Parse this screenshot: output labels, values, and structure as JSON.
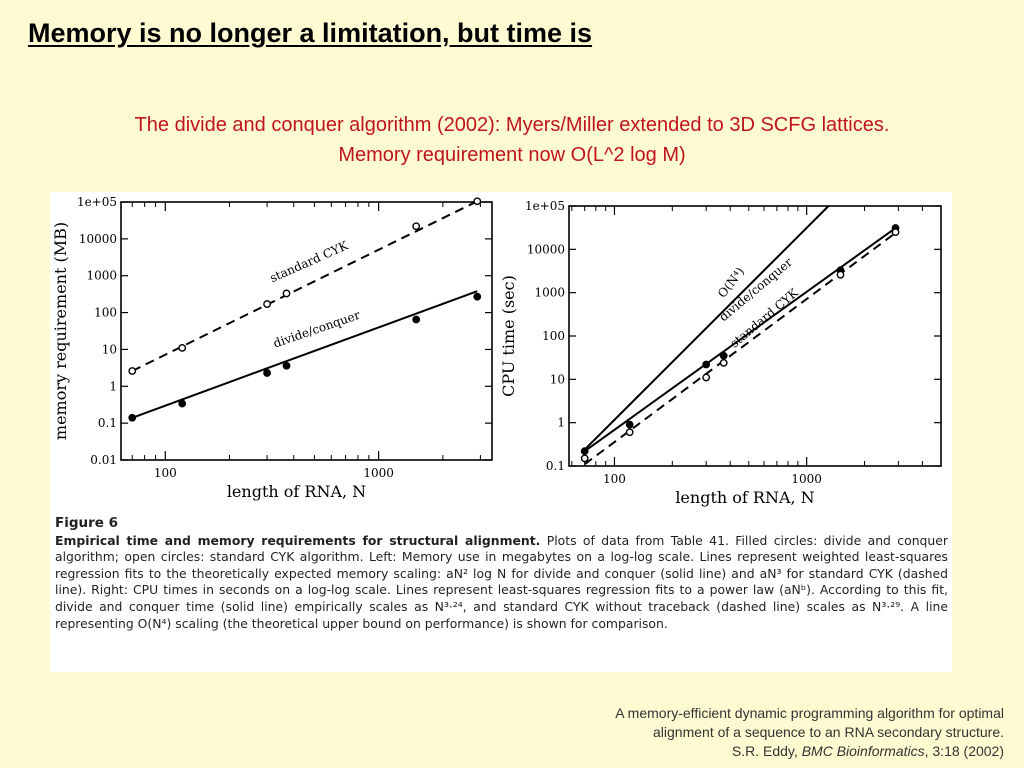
{
  "slide": {
    "title": "Memory is no longer a limitation, but time is",
    "subtitle_line1": "The divide and conquer algorithm (2002): Myers/Miller extended to 3D SCFG lattices.",
    "subtitle_line2": "Memory requirement now O(L^2 log M)"
  },
  "figure": {
    "number": "Figure 6",
    "caption_bold": "Empirical time and memory requirements for structural alignment.",
    "caption_rest": "Plots of data from Table 41. Filled circles: divide and conquer algorithm; open circles: standard CYK algorithm. Left: Memory use in megabytes on a log-log scale. Lines represent weighted least-squares regression fits to the theoretically expected memory scaling: aN² log N for divide and conquer (solid line) and aN³ for standard CYK (dashed line). Right: CPU times in seconds on a log-log scale. Lines represent least-squares regression fits to a power law (aNᵇ). According to this fit, divide and conquer time (solid line) empirically scales as N³·²⁴, and standard CYK without traceback (dashed line) scales as N³·²⁹. A line representing O(N⁴) scaling (the theoretical upper bound on performance) is shown for comparison."
  },
  "citation": {
    "line1": "A memory-efficient dynamic programming algorithm for optimal",
    "line2": "alignment of a sequence to an RNA secondary structure.",
    "authors": "S.R. Eddy, ",
    "journal": "BMC Bioinformatics",
    "volume": ", 3:18 (2002)"
  },
  "colors": {
    "background": "#fefbd3",
    "subtitle": "#c0141c",
    "figure_background": "#ffffff",
    "ink": "#000000"
  },
  "chart_data": [
    {
      "type": "scatter",
      "xlabel": "length of RNA, N",
      "ylabel": "memory requirement (MB)",
      "xscale": "log",
      "yscale": "log",
      "xlim": [
        62,
        3400
      ],
      "ylim": [
        0.01,
        100000
      ],
      "xticks": [
        {
          "v": 100,
          "label": "100"
        },
        {
          "v": 1000,
          "label": "1000"
        }
      ],
      "yticks": [
        {
          "v": 0.01,
          "label": "0.01"
        },
        {
          "v": 0.1,
          "label": "0.1"
        },
        {
          "v": 1,
          "label": "1"
        },
        {
          "v": 10,
          "label": "10"
        },
        {
          "v": 100,
          "label": "100"
        },
        {
          "v": 1000,
          "label": "1000"
        },
        {
          "v": 10000,
          "label": "10000"
        },
        {
          "v": 100000,
          "label": "1e+05"
        }
      ],
      "series": [
        {
          "name": "standard CYK",
          "marker": "open",
          "line": "dashed",
          "points": [
            [
              70,
              2.6
            ],
            [
              120,
              11
            ],
            [
              300,
              170
            ],
            [
              370,
              330
            ],
            [
              1500,
              22000
            ],
            [
              2900,
              105000
            ]
          ],
          "fit": [
            [
              70,
              2.6
            ],
            [
              2900,
              105000
            ]
          ],
          "label_at": [
            480,
            1900
          ],
          "label_angle": -24
        },
        {
          "name": "divide/conquer",
          "marker": "filled",
          "line": "solid",
          "points": [
            [
              70,
              0.14
            ],
            [
              120,
              0.34
            ],
            [
              300,
              2.3
            ],
            [
              370,
              3.6
            ],
            [
              1500,
              65
            ],
            [
              2900,
              270
            ]
          ],
          "fit": [
            [
              70,
              0.14
            ],
            [
              2900,
              380
            ]
          ],
          "label_at": [
            520,
            28
          ],
          "label_angle": -19
        }
      ]
    },
    {
      "type": "scatter",
      "xlabel": "length of RNA, N",
      "ylabel": "CPU time (sec)",
      "xscale": "log",
      "yscale": "log",
      "xlim": [
        58,
        5000
      ],
      "ylim": [
        0.1,
        100000
      ],
      "xticks": [
        {
          "v": 100,
          "label": "100"
        },
        {
          "v": 1000,
          "label": "1000"
        }
      ],
      "yticks": [
        {
          "v": 0.1,
          "label": "0.1"
        },
        {
          "v": 1,
          "label": "1"
        },
        {
          "v": 10,
          "label": "10"
        },
        {
          "v": 100,
          "label": "100"
        },
        {
          "v": 1000,
          "label": "1000"
        },
        {
          "v": 10000,
          "label": "10000"
        },
        {
          "v": 100000,
          "label": "1e+05"
        }
      ],
      "series": [
        {
          "name": "O(N⁴)",
          "marker": "none",
          "line": "solid",
          "points": [],
          "fit": [
            [
              70,
              0.24
            ],
            [
              1300,
              100000
            ]
          ],
          "label_at": [
            420,
            1500
          ],
          "label_angle": -52
        },
        {
          "name": "divide/conquer",
          "marker": "filled",
          "line": "solid",
          "points": [
            [
              70,
              0.22
            ],
            [
              120,
              0.9
            ],
            [
              300,
              22
            ],
            [
              370,
              35
            ],
            [
              1500,
              3300
            ],
            [
              2900,
              31000
            ]
          ],
          "fit": [
            [
              70,
              0.22
            ],
            [
              2900,
              31000
            ]
          ],
          "label_at": [
            560,
            1000
          ],
          "label_angle": -40
        },
        {
          "name": "standard CYK",
          "marker": "open",
          "line": "dashed",
          "points": [
            [
              70,
              0.15
            ],
            [
              120,
              0.6
            ],
            [
              300,
              11
            ],
            [
              370,
              24
            ],
            [
              1500,
              2600
            ],
            [
              2900,
              25000
            ]
          ],
          "fit": [
            [
              70,
              0.11
            ],
            [
              2900,
              24000
            ]
          ],
          "label_at": [
            620,
            220
          ],
          "label_angle": -40
        }
      ]
    }
  ]
}
